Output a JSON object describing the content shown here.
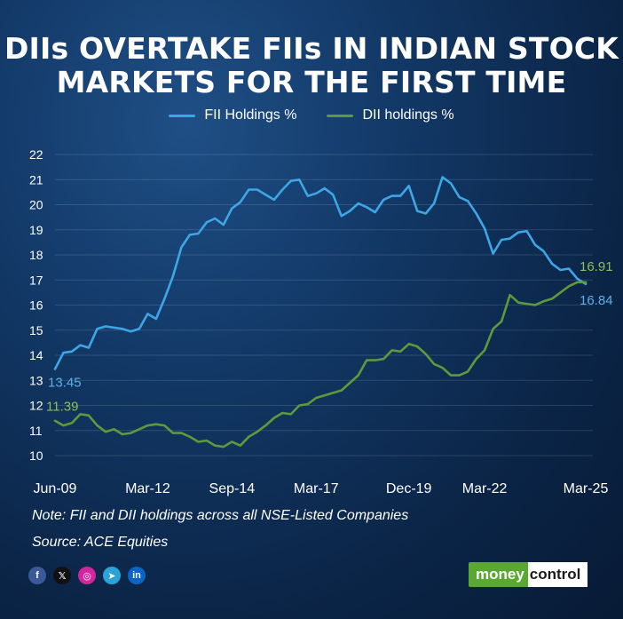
{
  "title_line1": "DIIs OVERTAKE FIIs IN INDIAN STOCK",
  "title_line2": "MARKETS FOR THE FIRST TIME",
  "note": "Note: FII and DII holdings across all NSE-Listed Companies",
  "source": "Source: ACE Equities",
  "social": [
    {
      "icon": "facebook-icon",
      "glyph": "f",
      "color": "#3b5998"
    },
    {
      "icon": "x-icon",
      "glyph": "𝕏",
      "color": "#111111"
    },
    {
      "icon": "instagram-icon",
      "glyph": "◎",
      "color": "#d6249f"
    },
    {
      "icon": "telegram-icon",
      "glyph": "➤",
      "color": "#2aa3d9"
    },
    {
      "icon": "linkedin-icon",
      "glyph": "in",
      "color": "#0a66c2"
    }
  ],
  "logo": {
    "part1": "money",
    "part2": "control"
  },
  "colors": {
    "fii": "#3ea6e6",
    "dii": "#5e9a3a",
    "fii_label": "#5ab0e8",
    "dii_label": "#8fbf5a"
  },
  "chart_data": {
    "type": "line",
    "ylim": [
      10,
      22
    ],
    "yticks": [
      10,
      11,
      12,
      13,
      14,
      15,
      16,
      17,
      18,
      19,
      20,
      21,
      22
    ],
    "x_tick_labels": [
      "Jun-09",
      "Mar-12",
      "Sep-14",
      "Mar-17",
      "Dec-19",
      "Mar-22",
      "Mar-25"
    ],
    "x_tick_index": [
      0,
      11,
      21,
      31,
      42,
      51,
      63
    ],
    "grid": "horizontal",
    "legend_position": "top-center",
    "series": [
      {
        "name": "FII Holdings %",
        "values": [
          13.45,
          14.1,
          14.15,
          14.4,
          14.3,
          15.05,
          15.15,
          15.1,
          15.05,
          14.95,
          15.05,
          15.65,
          15.45,
          16.25,
          17.15,
          18.3,
          18.8,
          18.85,
          19.3,
          19.45,
          19.2,
          19.85,
          20.1,
          20.6,
          20.6,
          20.4,
          20.2,
          20.6,
          20.95,
          21.0,
          20.35,
          20.45,
          20.65,
          20.4,
          19.55,
          19.75,
          20.05,
          19.9,
          19.7,
          20.2,
          20.35,
          20.35,
          20.75,
          19.75,
          19.65,
          20.05,
          21.1,
          20.85,
          20.3,
          20.15,
          19.65,
          19.05,
          18.05,
          18.6,
          18.65,
          18.9,
          18.95,
          18.4,
          18.15,
          17.65,
          17.4,
          17.45,
          17.05,
          16.84
        ],
        "start_label": "13.45",
        "end_label": "16.84"
      },
      {
        "name": "DII holdings %",
        "values": [
          11.39,
          11.2,
          11.3,
          11.65,
          11.6,
          11.2,
          10.95,
          11.05,
          10.85,
          10.9,
          11.05,
          11.2,
          11.25,
          11.2,
          10.9,
          10.9,
          10.75,
          10.55,
          10.6,
          10.4,
          10.35,
          10.55,
          10.4,
          10.75,
          10.95,
          11.2,
          11.5,
          11.7,
          11.65,
          12.0,
          12.05,
          12.3,
          12.4,
          12.5,
          12.6,
          12.9,
          13.2,
          13.8,
          13.8,
          13.85,
          14.2,
          14.15,
          14.45,
          14.35,
          14.05,
          13.65,
          13.5,
          13.2,
          13.2,
          13.35,
          13.85,
          14.2,
          15.05,
          15.35,
          16.4,
          16.1,
          16.05,
          16.0,
          16.15,
          16.25,
          16.5,
          16.75,
          16.91,
          16.91
        ],
        "start_label": "11.39",
        "end_label": "16.91"
      }
    ]
  }
}
